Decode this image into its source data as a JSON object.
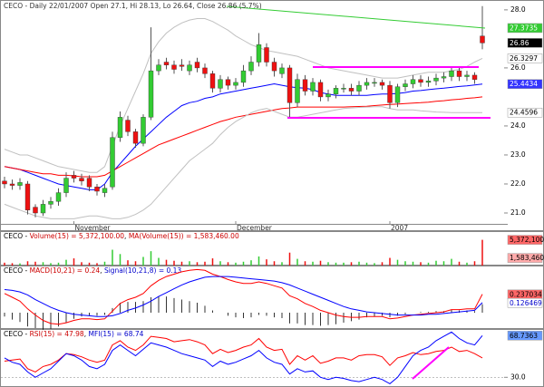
{
  "chart_data": [
    {
      "type": "candlestick",
      "title": "CECO - Daily 22/01/2007 Open 27.1, Hi 28.13, Lo 26.64, Close 26.86 (5.7%)",
      "categories": [
        null,
        null,
        null,
        null,
        null,
        null,
        null,
        null,
        null,
        "November",
        null,
        null,
        null,
        null,
        null,
        null,
        null,
        null,
        null,
        null,
        null,
        null,
        null,
        null,
        null,
        null,
        null,
        null,
        null,
        null,
        "December",
        null,
        null,
        null,
        null,
        null,
        null,
        null,
        null,
        null,
        null,
        null,
        null,
        null,
        null,
        null,
        null,
        null,
        null,
        null,
        "2007",
        null,
        null,
        null,
        null,
        null,
        null,
        null,
        null,
        null,
        null,
        null,
        null
      ],
      "open": [
        22.1,
        22.0,
        21.95,
        22.0,
        21.2,
        21.0,
        21.3,
        21.4,
        21.7,
        22.3,
        22.2,
        22.2,
        21.9,
        21.7,
        21.9,
        23.6,
        24.2,
        23.8,
        23.4,
        24.3,
        25.9,
        26.2,
        26.1,
        26.1,
        25.9,
        26.2,
        26.0,
        25.8,
        25.3,
        25.6,
        25.4,
        25.5,
        25.9,
        26.2,
        26.7,
        26.2,
        25.8,
        26.0,
        24.8,
        25.6,
        25.2,
        25.5,
        25.0,
        25.1,
        25.3,
        25.3,
        25.2,
        25.4,
        25.5,
        25.5,
        25.4,
        24.8,
        25.35,
        25.45,
        25.6,
        25.5,
        25.55,
        25.65,
        25.7,
        25.9,
        25.7,
        25.75,
        27.1
      ],
      "high": [
        22.25,
        22.15,
        22.2,
        22.1,
        21.3,
        21.45,
        21.55,
        21.85,
        22.4,
        22.45,
        22.35,
        22.3,
        22.0,
        22.0,
        23.8,
        24.5,
        24.35,
        23.9,
        24.4,
        27.4,
        26.3,
        26.35,
        26.25,
        26.3,
        26.25,
        26.35,
        26.15,
        25.9,
        25.75,
        25.7,
        25.65,
        26.1,
        26.4,
        27.2,
        26.85,
        26.35,
        26.15,
        26.1,
        25.8,
        25.75,
        25.65,
        25.6,
        25.25,
        25.4,
        25.45,
        25.45,
        25.55,
        25.65,
        25.65,
        25.6,
        25.55,
        25.45,
        25.6,
        25.75,
        25.75,
        25.7,
        25.8,
        25.85,
        26.05,
        26.0,
        25.9,
        25.85,
        28.13
      ],
      "low": [
        21.85,
        21.8,
        21.8,
        20.95,
        20.85,
        20.9,
        21.15,
        21.25,
        21.55,
        22.05,
        21.95,
        21.75,
        21.6,
        21.55,
        21.8,
        23.45,
        23.65,
        23.25,
        23.3,
        24.2,
        25.75,
        25.95,
        25.8,
        25.9,
        25.75,
        25.85,
        25.65,
        25.15,
        25.15,
        25.25,
        25.25,
        25.35,
        25.75,
        26.05,
        26.05,
        25.7,
        25.65,
        24.3,
        24.65,
        25.05,
        25.05,
        24.85,
        24.85,
        24.95,
        25.15,
        25.05,
        25.05,
        25.25,
        25.35,
        25.25,
        24.6,
        24.65,
        25.2,
        25.3,
        25.35,
        25.35,
        25.4,
        25.5,
        25.55,
        25.55,
        25.55,
        25.45,
        26.64
      ],
      "close": [
        22.0,
        21.95,
        22.05,
        21.1,
        21.0,
        21.3,
        21.4,
        21.7,
        22.2,
        22.2,
        22.1,
        21.9,
        21.75,
        21.85,
        23.6,
        24.3,
        23.8,
        23.4,
        24.3,
        25.9,
        26.1,
        26.1,
        25.95,
        26.05,
        26.1,
        26.0,
        25.8,
        25.3,
        25.6,
        25.4,
        25.5,
        25.9,
        26.2,
        26.8,
        26.2,
        25.9,
        26.0,
        24.8,
        25.6,
        25.2,
        25.5,
        25.0,
        25.1,
        25.3,
        25.3,
        25.2,
        25.4,
        25.5,
        25.5,
        25.4,
        24.8,
        25.35,
        25.45,
        25.6,
        25.5,
        25.55,
        25.65,
        25.7,
        25.9,
        25.7,
        25.75,
        25.6,
        26.86
      ],
      "up_color": "#33cc33",
      "down_color": "#ee1111",
      "series": [
        {
          "color": "#0000ff",
          "values": [
            22.6,
            22.55,
            22.5,
            22.4,
            22.3,
            22.2,
            22.1,
            22.0,
            21.95,
            21.9,
            21.85,
            21.8,
            21.8,
            22.0,
            22.4,
            22.7,
            23.0,
            23.3,
            23.55,
            23.8,
            24.05,
            24.3,
            24.5,
            24.7,
            24.8,
            24.85,
            24.95,
            25.0,
            25.1,
            25.15,
            25.2,
            25.25,
            25.3,
            25.35,
            25.4,
            25.45,
            25.4,
            25.35,
            25.32,
            25.3,
            25.25,
            25.15,
            25.1,
            25.05,
            25.05,
            25.05,
            25.05,
            25.05,
            25.08,
            25.1,
            25.1,
            25.12,
            25.15,
            25.2,
            25.22,
            25.25,
            25.28,
            25.3,
            25.33,
            25.36,
            25.38,
            25.41,
            25.44
          ]
        },
        {
          "color": "#ff0000",
          "values": [
            22.6,
            22.55,
            22.5,
            22.45,
            22.4,
            22.35,
            22.35,
            22.3,
            22.3,
            22.28,
            22.25,
            22.25,
            22.25,
            22.3,
            22.45,
            22.6,
            22.75,
            22.9,
            23.05,
            23.2,
            23.35,
            23.45,
            23.55,
            23.65,
            23.75,
            23.85,
            23.95,
            24.05,
            24.15,
            24.22,
            24.3,
            24.35,
            24.4,
            24.45,
            24.5,
            24.55,
            24.6,
            24.62,
            24.65,
            24.65,
            24.65,
            24.65,
            24.65,
            24.65,
            24.65,
            24.66,
            24.67,
            24.68,
            24.7,
            24.72,
            24.74,
            24.75,
            24.77,
            24.79,
            24.8,
            24.82,
            24.85,
            24.87,
            24.9,
            24.92,
            24.95,
            24.97,
            25.0
          ]
        },
        {
          "color": "#c0c0c0",
          "values": [
            23.2,
            23.1,
            23.0,
            23.0,
            22.9,
            22.8,
            22.7,
            22.6,
            22.55,
            22.5,
            22.45,
            22.4,
            22.4,
            22.6,
            23.3,
            24.0,
            24.6,
            25.2,
            25.8,
            26.5,
            26.9,
            27.2,
            27.4,
            27.55,
            27.65,
            27.7,
            27.7,
            27.6,
            27.45,
            27.3,
            27.1,
            26.95,
            26.8,
            26.7,
            26.6,
            26.55,
            26.5,
            26.45,
            26.4,
            26.3,
            26.2,
            26.1,
            26.0,
            25.95,
            25.9,
            25.85,
            25.8,
            25.75,
            25.7,
            25.65,
            25.65,
            25.65,
            25.7,
            25.75,
            25.8,
            25.85,
            25.85,
            25.85,
            25.9,
            25.95,
            26.05,
            26.2,
            26.33
          ]
        },
        {
          "color": "#c0c0c0",
          "values": [
            21.3,
            21.2,
            21.1,
            21.0,
            20.9,
            20.85,
            20.8,
            20.8,
            20.8,
            20.8,
            20.85,
            20.9,
            20.9,
            20.85,
            20.8,
            20.8,
            20.85,
            20.95,
            21.1,
            21.3,
            21.6,
            21.9,
            22.2,
            22.5,
            22.8,
            23.0,
            23.2,
            23.4,
            23.7,
            23.95,
            24.15,
            24.3,
            24.45,
            24.55,
            24.6,
            24.5,
            24.4,
            24.3,
            24.3,
            24.35,
            24.4,
            24.45,
            24.5,
            24.55,
            24.6,
            24.62,
            24.64,
            24.65,
            24.66,
            24.66,
            24.6,
            24.55,
            24.55,
            24.55,
            24.52,
            24.5,
            24.48,
            24.47,
            24.46,
            24.46,
            24.46,
            24.46,
            24.46
          ]
        }
      ],
      "ylim": [
        20.625,
        28.34
      ],
      "yticks": [
        {
          "value": 21,
          "label": "21.0"
        },
        {
          "value": 22,
          "label": "22.0"
        },
        {
          "value": 23,
          "label": "23.0"
        },
        {
          "value": 24,
          "label": "24.0"
        },
        {
          "value": 26,
          "label": "26.0"
        },
        {
          "value": 28,
          "label": "28.0"
        }
      ],
      "price_labels": [
        {
          "value": 27.3735,
          "color": "#33cc33",
          "text_color": "#ffffff"
        },
        {
          "value": 26.86,
          "color": "#000000",
          "text_color": "#ffffff"
        },
        {
          "value": 26.3297,
          "color": "#ffffff",
          "text_color": "#000000"
        },
        {
          "value": 25.4434,
          "color": "#3333ff",
          "text_color": "#ffffff"
        },
        {
          "value": 24.4596,
          "color": "#ffffff",
          "text_color": "#000000"
        }
      ]
    },
    {
      "type": "bar",
      "title_parts": [
        {
          "text": "CECO - ",
          "color": "#000000"
        },
        {
          "text": "Volume(15) = 5,372,100.00",
          "color": "#cc0000"
        },
        {
          "text": ", ",
          "color": "#000000"
        },
        {
          "text": "MA(Volume(15)) = 1,583,460.00",
          "color": "#cc0000"
        }
      ],
      "values": [
        600000,
        500000,
        450000,
        900000,
        800000,
        700000,
        500000,
        600000,
        1200000,
        1500000,
        700000,
        600000,
        500000,
        800000,
        3300000,
        2400000,
        1100000,
        900000,
        1800000,
        3000000,
        1600000,
        1200000,
        1000000,
        800000,
        900000,
        700000,
        800000,
        1500000,
        900000,
        700000,
        600000,
        800000,
        1100000,
        1900000,
        1300000,
        900000,
        700000,
        2700000,
        1400000,
        900000,
        800000,
        1000000,
        700000,
        600000,
        600000,
        700000,
        800000,
        600000,
        500000,
        700000,
        1600000,
        1200000,
        900000,
        800000,
        700000,
        600000,
        1000000,
        900000,
        1400000,
        800000,
        600000,
        900000,
        5372100
      ],
      "ylim": [
        0,
        7000000
      ],
      "price_labels": [
        {
          "value": 5372100,
          "label": "5,372,100",
          "color": "#ff6666",
          "text_color": "#000000"
        },
        {
          "value": 1583460,
          "label": "1,583,460",
          "color": "#ffaaaa",
          "text_color": "#000000"
        }
      ]
    },
    {
      "type": "macd",
      "title_parts": [
        {
          "text": "CECO - ",
          "color": "#000000"
        },
        {
          "text": "MACD(10,21) = 0.24",
          "color": "#cc0000"
        },
        {
          "text": ", ",
          "color": "#000000"
        },
        {
          "text": "Signal(10,21,8) = 0.13",
          "color": "#0000cc"
        }
      ],
      "series": [
        {
          "color": "#ff0000",
          "values": [
            0.25,
            0.2,
            0.15,
            0.05,
            -0.03,
            -0.1,
            -0.14,
            -0.15,
            -0.13,
            -0.1,
            -0.08,
            -0.08,
            -0.09,
            -0.08,
            0.02,
            0.12,
            0.17,
            0.2,
            0.25,
            0.35,
            0.42,
            0.47,
            0.5,
            0.53,
            0.55,
            0.56,
            0.55,
            0.5,
            0.47,
            0.43,
            0.4,
            0.38,
            0.38,
            0.4,
            0.38,
            0.35,
            0.32,
            0.22,
            0.18,
            0.12,
            0.08,
            0.03,
            0.0,
            -0.03,
            -0.05,
            -0.06,
            -0.06,
            -0.05,
            -0.05,
            -0.05,
            -0.08,
            -0.07,
            -0.05,
            -0.03,
            -0.02,
            -0.01,
            0.0,
            0.01,
            0.04,
            0.04,
            0.05,
            0.05,
            0.24
          ]
        },
        {
          "color": "#0000ff",
          "values": [
            0.3,
            0.29,
            0.27,
            0.23,
            0.17,
            0.12,
            0.07,
            0.03,
            0.0,
            -0.02,
            -0.03,
            -0.04,
            -0.05,
            -0.05,
            -0.04,
            -0.01,
            0.03,
            0.06,
            0.1,
            0.15,
            0.21,
            0.26,
            0.31,
            0.36,
            0.4,
            0.43,
            0.46,
            0.47,
            0.47,
            0.47,
            0.46,
            0.45,
            0.44,
            0.43,
            0.42,
            0.41,
            0.39,
            0.36,
            0.32,
            0.28,
            0.24,
            0.2,
            0.16,
            0.12,
            0.08,
            0.05,
            0.03,
            0.01,
            0.0,
            -0.01,
            -0.02,
            -0.03,
            -0.03,
            -0.03,
            -0.03,
            -0.02,
            -0.02,
            -0.01,
            0.0,
            0.01,
            0.02,
            0.03,
            0.13
          ]
        }
      ],
      "histogram": [
        -0.05,
        -0.09,
        -0.12,
        -0.18,
        -0.2,
        -0.22,
        -0.21,
        -0.18,
        -0.13,
        -0.08,
        -0.05,
        -0.04,
        -0.04,
        -0.03,
        0.06,
        0.13,
        0.14,
        0.14,
        0.15,
        0.2,
        0.21,
        0.21,
        0.19,
        0.17,
        0.15,
        0.13,
        0.09,
        0.03,
        0.0,
        -0.04,
        -0.06,
        -0.07,
        -0.06,
        -0.03,
        -0.04,
        -0.06,
        -0.07,
        -0.14,
        -0.14,
        -0.16,
        -0.16,
        -0.17,
        -0.16,
        -0.15,
        -0.13,
        -0.11,
        -0.09,
        -0.06,
        -0.05,
        -0.04,
        -0.06,
        -0.04,
        -0.02,
        0.0,
        0.01,
        0.01,
        0.02,
        0.02,
        0.04,
        0.03,
        0.03,
        0.02,
        0.11
      ],
      "histogram_color": "#000000",
      "ylim": [
        -0.2,
        0.6
      ],
      "price_labels": [
        {
          "value": 0.237034,
          "color": "#ff6666",
          "text_color": "#000000"
        },
        {
          "value": 0.126469,
          "color": "#ffffff",
          "text_color": "#0000cc"
        }
      ]
    },
    {
      "type": "line",
      "title_parts": [
        {
          "text": "CECO - ",
          "color": "#000000"
        },
        {
          "text": "RSI(15) = 47.98",
          "color": "#cc0000"
        },
        {
          "text": ", ",
          "color": "#000000"
        },
        {
          "text": "MFI(15) = 68.74",
          "color": "#0000cc"
        }
      ],
      "series": [
        {
          "color": "#ff0000",
          "values": [
            45,
            46,
            47,
            38,
            35,
            40,
            42,
            46,
            52,
            51,
            49,
            46,
            44,
            46,
            60,
            64,
            58,
            55,
            60,
            68,
            67,
            66,
            63,
            64,
            65,
            63,
            60,
            52,
            56,
            53,
            55,
            58,
            60,
            66,
            58,
            55,
            56,
            42,
            50,
            46,
            50,
            43,
            45,
            48,
            48,
            46,
            50,
            51,
            51,
            49,
            41,
            48,
            50,
            53,
            51,
            52,
            54,
            55,
            58,
            54,
            55,
            52,
            47.98
          ]
        },
        {
          "color": "#0000ff",
          "values": [
            48,
            44,
            42,
            35,
            30,
            34,
            38,
            45,
            52,
            50,
            46,
            40,
            38,
            42,
            55,
            60,
            55,
            50,
            56,
            62,
            60,
            58,
            55,
            52,
            50,
            48,
            46,
            40,
            45,
            42,
            44,
            47,
            50,
            55,
            48,
            44,
            42,
            33,
            38,
            35,
            36,
            30,
            28,
            30,
            29,
            27,
            26,
            28,
            30,
            28,
            24,
            30,
            40,
            50,
            55,
            58,
            64,
            68,
            72,
            66,
            62,
            60,
            68.74
          ]
        }
      ],
      "ylim": [
        21,
        74
      ],
      "yticks": [
        {
          "value": 30,
          "label": "30.0"
        }
      ],
      "grid": true,
      "price_labels": [
        {
          "value": 68.7363,
          "color": "#6699ff",
          "text_color": "#000000"
        }
      ]
    }
  ]
}
